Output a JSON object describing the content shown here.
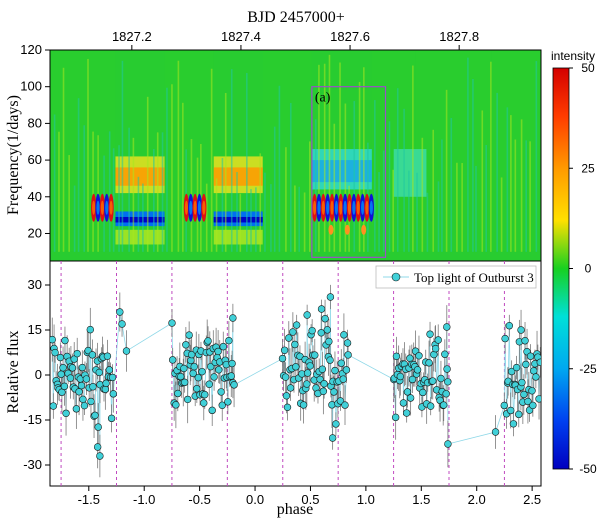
{
  "chart_data": [
    {
      "type": "heatmap",
      "top_title": "BJD 2457000+",
      "top_ticks": [
        "1827.2",
        "1827.4",
        "1827.6",
        "1827.8"
      ],
      "top_tick_values": [
        1827.2,
        1827.4,
        1827.6,
        1827.8
      ],
      "time_range": [
        1827.05,
        1827.95
      ],
      "ylabel": "Frequency(1/days)",
      "yticks": [
        "20",
        "40",
        "60",
        "80",
        "100",
        "120"
      ],
      "ylim": [
        5,
        120
      ],
      "annotation": "(a)",
      "box_time": [
        1827.53,
        1827.665
      ],
      "box_freq": [
        7,
        100
      ],
      "colorbar": {
        "title": "intensity",
        "ticks": [
          "50",
          "25",
          "0",
          "-25",
          "-50"
        ],
        "range": [
          -50,
          50
        ]
      }
    },
    {
      "type": "scatter",
      "xlabel": "phase",
      "ylabel": "Relative flux",
      "xticks": [
        "-1.5",
        "-1.0",
        "-0.5",
        "0.0",
        "0.5",
        "1.0",
        "1.5",
        "2.0",
        "2.5"
      ],
      "yticks": [
        "30",
        "15",
        "0",
        "-15",
        "-30"
      ],
      "xlim": [
        -1.85,
        2.58
      ],
      "ylim": [
        -37,
        38
      ],
      "legend": "Top light of Outburst 3",
      "legend_placement": "top-right",
      "colors": {
        "marker": "#40d0d8",
        "edge": "#1a1a1a",
        "line": "#8fd8e8",
        "vline": "#c04ac0"
      },
      "phase_lines": [
        -1.75,
        -1.25,
        -0.75,
        -0.25,
        0.25,
        0.75,
        1.25,
        1.75,
        2.25
      ],
      "clusters": [
        {
          "x0": -1.83,
          "x1": -1.27,
          "y": 0
        },
        {
          "x0": -0.75,
          "x1": -0.18,
          "y": 0
        },
        {
          "x0": 0.25,
          "x1": 0.85,
          "y": 2
        },
        {
          "x0": 1.25,
          "x1": 1.75,
          "y": 0
        },
        {
          "x0": 2.25,
          "x1": 2.58,
          "y": 0
        }
      ],
      "notable_points": [
        [
          -1.22,
          21
        ],
        [
          -1.2,
          17
        ],
        [
          0.68,
          26
        ],
        [
          0.6,
          22
        ],
        [
          0.47,
          20
        ],
        [
          -0.2,
          19
        ],
        [
          -1.4,
          -27
        ],
        [
          -1.42,
          -24
        ],
        [
          0.7,
          -21
        ],
        [
          1.74,
          -23
        ],
        [
          2.17,
          -19
        ],
        [
          -1.16,
          8
        ],
        [
          1.73,
          16
        ],
        [
          2.4,
          15
        ]
      ]
    }
  ]
}
